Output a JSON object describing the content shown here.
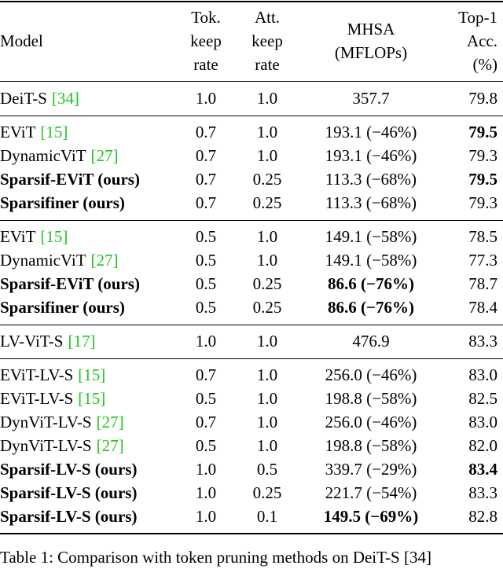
{
  "table": {
    "header": [
      [
        "Model"
      ],
      [
        "Tok.",
        "keep",
        "rate"
      ],
      [
        "Att.",
        "keep",
        "rate"
      ],
      [
        "MHSA",
        "(MFLOPs)"
      ],
      [
        "Top-1",
        "Acc.",
        "(%)"
      ]
    ],
    "groups": [
      [
        {
          "model": "DeiT-S",
          "cite": "[34]",
          "tok": "1.0",
          "att": "1.0",
          "mhsa": "357.7",
          "acc": "79.8",
          "bold": []
        }
      ],
      [
        {
          "model": "EViT",
          "cite": "[15]",
          "tok": "0.7",
          "att": "1.0",
          "mhsa": "193.1 (−46%)",
          "acc": "79.5",
          "bold": [
            "acc"
          ]
        },
        {
          "model": "DynamicViT",
          "cite": "[27]",
          "tok": "0.7",
          "att": "1.0",
          "mhsa": "193.1 (−46%)",
          "acc": "79.3",
          "bold": []
        },
        {
          "model": "Sparsif-EViT (ours)",
          "tok": "0.7",
          "att": "0.25",
          "mhsa": "113.3 (−68%)",
          "acc": "79.5",
          "bold": [
            "model",
            "acc"
          ]
        },
        {
          "model": "Sparsifiner (ours)",
          "tok": "0.7",
          "att": "0.25",
          "mhsa": "113.3 (−68%)",
          "acc": "79.3",
          "bold": [
            "model"
          ]
        }
      ],
      [
        {
          "model": "EViT",
          "cite": "[15]",
          "tok": "0.5",
          "att": "1.0",
          "mhsa": "149.1 (−58%)",
          "acc": "78.5",
          "bold": []
        },
        {
          "model": "DynamicViT",
          "cite": "[27]",
          "tok": "0.5",
          "att": "1.0",
          "mhsa": "149.1 (−58%)",
          "acc": "77.3",
          "bold": []
        },
        {
          "model": "Sparsif-EViT (ours)",
          "tok": "0.5",
          "att": "0.25",
          "mhsa": "86.6 (−76%)",
          "acc": "78.7",
          "bold": [
            "model",
            "mhsa"
          ]
        },
        {
          "model": "Sparsifiner (ours)",
          "tok": "0.5",
          "att": "0.25",
          "mhsa": "86.6 (−76%)",
          "acc": "78.4",
          "bold": [
            "model",
            "mhsa"
          ]
        }
      ],
      [
        {
          "model": "LV-ViT-S",
          "cite": "[17]",
          "tok": "1.0",
          "att": "1.0",
          "mhsa": "476.9",
          "acc": "83.3",
          "bold": []
        }
      ],
      [
        {
          "model": "EViT-LV-S",
          "cite": "[15]",
          "tok": "0.7",
          "att": "1.0",
          "mhsa": "256.0 (−46%)",
          "acc": "83.0",
          "bold": []
        },
        {
          "model": "EViT-LV-S",
          "cite": "[15]",
          "tok": "0.5",
          "att": "1.0",
          "mhsa": "198.8 (−58%)",
          "acc": "82.5",
          "bold": []
        },
        {
          "model": "DynViT-LV-S",
          "cite": "[27]",
          "tok": "0.7",
          "att": "1.0",
          "mhsa": "256.0 (−46%)",
          "acc": "83.0",
          "bold": []
        },
        {
          "model": "DynViT-LV-S",
          "cite": "[27]",
          "tok": "0.5",
          "att": "1.0",
          "mhsa": "198.8 (−58%)",
          "acc": "82.0",
          "bold": []
        },
        {
          "model": "Sparsif-LV-S (ours)",
          "tok": "1.0",
          "att": "0.5",
          "mhsa": "339.7 (−29%)",
          "acc": "83.4",
          "bold": [
            "model",
            "acc"
          ]
        },
        {
          "model": "Sparsif-LV-S (ours)",
          "tok": "1.0",
          "att": "0.25",
          "mhsa": "221.7 (−54%)",
          "acc": "83.3",
          "bold": [
            "model"
          ]
        },
        {
          "model": "Sparsif-LV-S (ours)",
          "tok": "1.0",
          "att": "0.1",
          "mhsa": "149.5 (−69%)",
          "acc": "82.8",
          "bold": [
            "model",
            "mhsa"
          ]
        }
      ]
    ]
  },
  "caption": "Table 1: Comparison with token pruning methods on DeiT-S [34]"
}
